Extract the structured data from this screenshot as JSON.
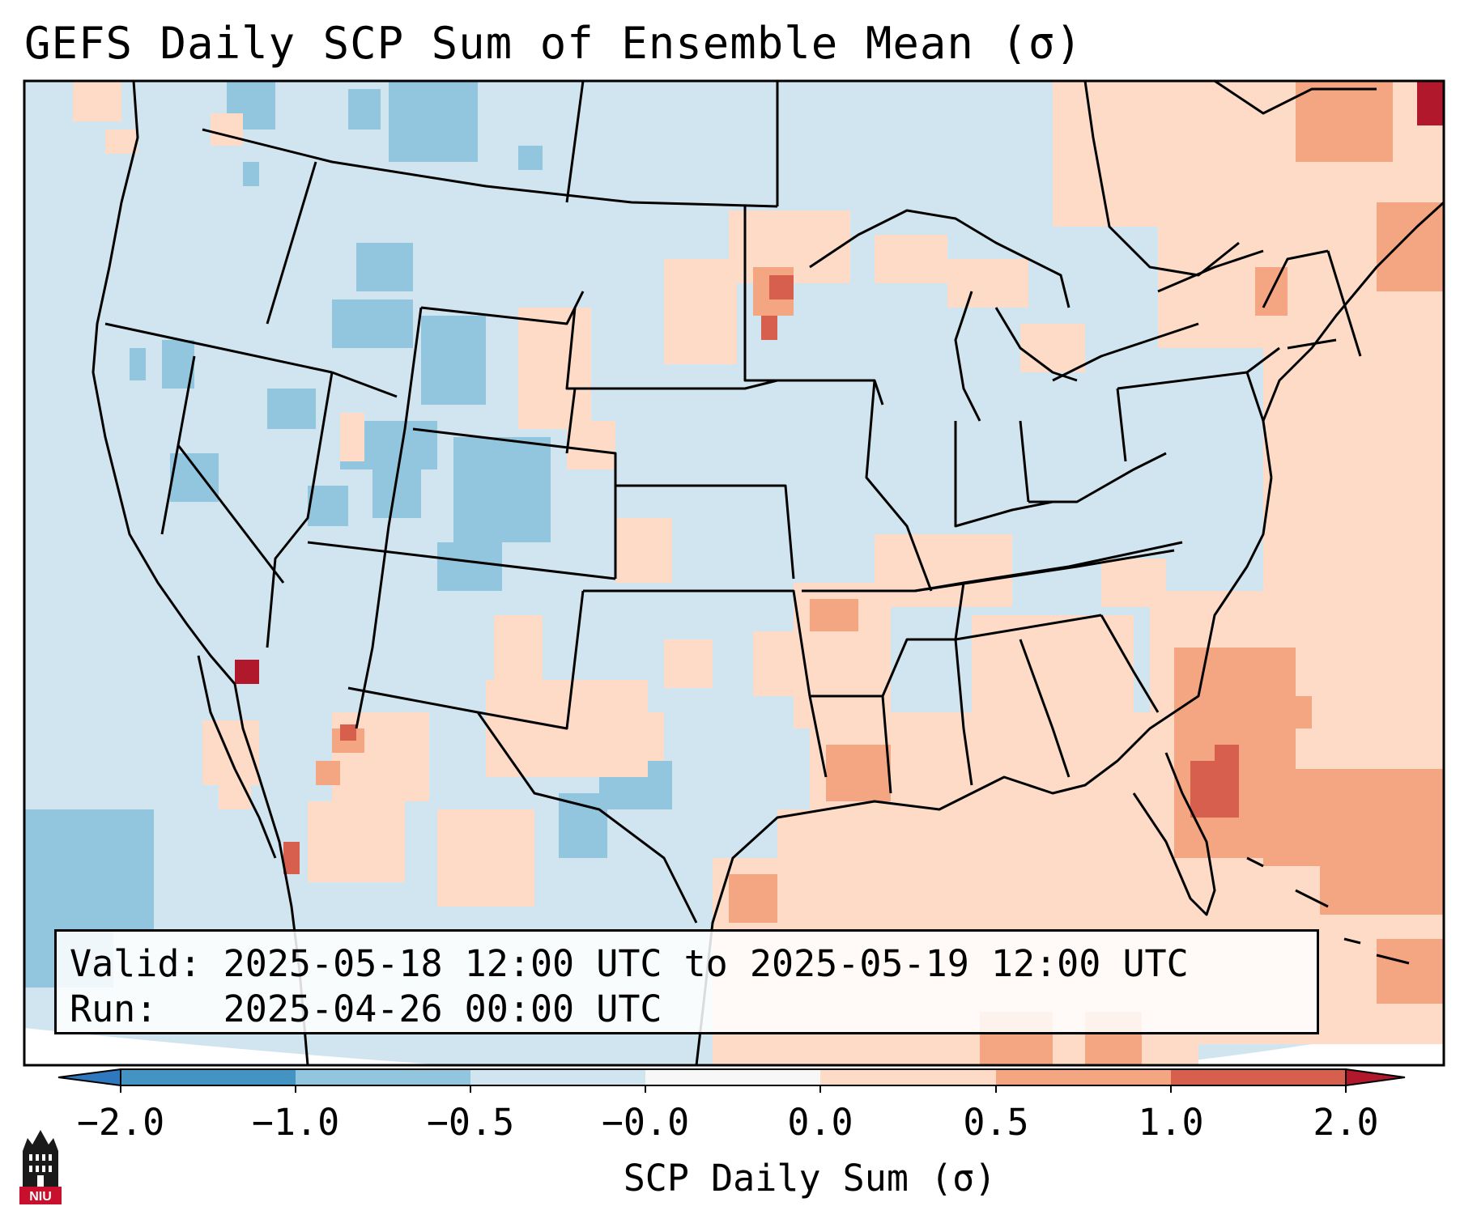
{
  "title": "GEFS Daily SCP Sum of Ensemble Mean (σ)",
  "info": {
    "valid_label": "Valid:",
    "valid_value": "2025-05-18 12:00 UTC to 2025-05-19 12:00 UTC",
    "run_label": "Run:",
    "run_value": "2025-04-26 00:00 UTC"
  },
  "colorbar": {
    "label": "SCP Daily Sum (σ)",
    "ticks": [
      "−2.0",
      "−1.0",
      "−0.5",
      "−0.0",
      "0.0",
      "0.5",
      "1.0",
      "2.0"
    ],
    "bins": [
      {
        "from": "<-2.0",
        "color": "#2f78bd"
      },
      {
        "from": "-2.0",
        "to": "-1.0",
        "color": "#4393c3"
      },
      {
        "from": "-1.0",
        "to": "-0.5",
        "color": "#92c5de"
      },
      {
        "from": "-0.5",
        "to": "-0.0",
        "color": "#d1e5f0"
      },
      {
        "from": "-0.0",
        "to": "0.0",
        "color": "#f7f7f7"
      },
      {
        "from": "0.0",
        "to": "0.5",
        "color": "#fddbc7"
      },
      {
        "from": "0.5",
        "to": "1.0",
        "color": "#f4a582"
      },
      {
        "from": "1.0",
        "to": "2.0",
        "color": "#d6604d"
      },
      {
        "from": ">2.0",
        "color": "#b2182b"
      }
    ]
  },
  "colors": {
    "background_field": "#d1e5f0",
    "positive_light": "#fddbc7",
    "positive_mid": "#f4a582",
    "positive_strong": "#d6604d",
    "positive_max": "#b2182b",
    "negative_light": "#92c5de"
  },
  "logo": {
    "text": "NIU",
    "icon": "niu-building-logo-icon"
  }
}
